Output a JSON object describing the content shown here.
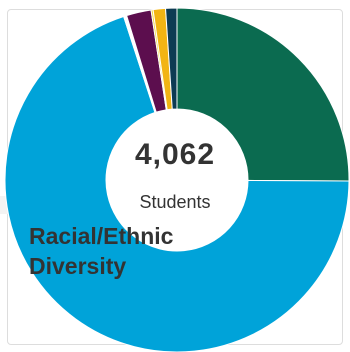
{
  "chart_data": {
    "type": "pie",
    "donut": true,
    "categories": [
      "",
      "",
      "",
      "",
      "",
      "",
      ""
    ],
    "values": [
      26.0,
      72.4,
      0.3,
      2.4,
      0.2,
      1.2,
      1.1
    ],
    "colors": [
      "#0b6b50",
      "#00a3d9",
      "#ffffff",
      "#5c0e4e",
      "#f2d93c",
      "#f2b413",
      "#0d3b53"
    ],
    "center_total": "4,062",
    "center_label": "Students",
    "title": "Racial/Ethnic Diversity"
  }
}
